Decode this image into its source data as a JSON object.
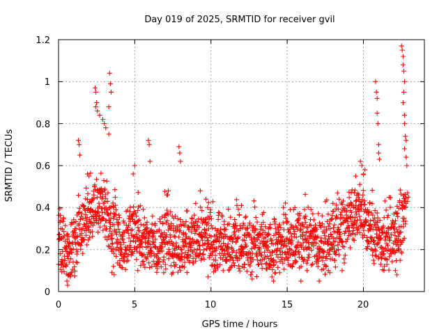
{
  "chart_data": {
    "type": "scatter",
    "title": "Day 019 of 2025, SRMTID for receiver gvil",
    "xlabel": "GPS time / hours",
    "ylabel": "SRMTID / TECUs",
    "xlim": [
      0,
      24
    ],
    "ylim": [
      0,
      1.2
    ],
    "xticks": [
      0,
      5,
      10,
      15,
      20
    ],
    "xtick_labels": [
      "0",
      "5",
      "10",
      "15",
      "20"
    ],
    "yticks": [
      0,
      0.2,
      0.4,
      0.6,
      0.8,
      1.0,
      1.2
    ],
    "ytick_labels": [
      "0",
      "0.2",
      "0.4",
      "0.6",
      "0.8",
      "1",
      "1.2"
    ],
    "grid": true,
    "marker": "+",
    "series": [
      {
        "name": "SRMTID",
        "color": "#ff0000",
        "profile": [
          [
            0.0,
            0.24
          ],
          [
            0.5,
            0.18
          ],
          [
            1.0,
            0.2
          ],
          [
            1.4,
            0.3
          ],
          [
            1.8,
            0.35
          ],
          [
            2.3,
            0.4
          ],
          [
            2.7,
            0.42
          ],
          [
            3.1,
            0.4
          ],
          [
            3.5,
            0.3
          ],
          [
            4.0,
            0.24
          ],
          [
            4.5,
            0.26
          ],
          [
            5.0,
            0.28
          ],
          [
            5.5,
            0.24
          ],
          [
            6.0,
            0.23
          ],
          [
            6.5,
            0.22
          ],
          [
            7.0,
            0.26
          ],
          [
            7.5,
            0.22
          ],
          [
            8.0,
            0.22
          ],
          [
            8.5,
            0.25
          ],
          [
            9.0,
            0.26
          ],
          [
            9.5,
            0.26
          ],
          [
            10.0,
            0.25
          ],
          [
            10.5,
            0.24
          ],
          [
            11.0,
            0.23
          ],
          [
            11.5,
            0.23
          ],
          [
            12.0,
            0.24
          ],
          [
            12.5,
            0.22
          ],
          [
            13.0,
            0.22
          ],
          [
            13.5,
            0.22
          ],
          [
            14.0,
            0.21
          ],
          [
            14.5,
            0.22
          ],
          [
            15.0,
            0.24
          ],
          [
            15.5,
            0.23
          ],
          [
            16.0,
            0.25
          ],
          [
            16.5,
            0.25
          ],
          [
            17.0,
            0.23
          ],
          [
            17.5,
            0.22
          ],
          [
            18.0,
            0.26
          ],
          [
            18.5,
            0.28
          ],
          [
            19.0,
            0.3
          ],
          [
            19.5,
            0.38
          ],
          [
            20.0,
            0.36
          ],
          [
            20.5,
            0.3
          ],
          [
            21.0,
            0.24
          ],
          [
            21.5,
            0.26
          ],
          [
            22.0,
            0.24
          ],
          [
            22.5,
            0.32
          ],
          [
            22.8,
            0.4
          ]
        ],
        "excursions": [
          [
            0.1,
            0.33
          ],
          [
            0.15,
            0.3
          ],
          [
            0.55,
            0.05
          ],
          [
            0.6,
            0.03
          ],
          [
            0.7,
            0.08
          ],
          [
            1.3,
            0.72
          ],
          [
            1.35,
            0.7
          ],
          [
            1.4,
            0.65
          ],
          [
            1.9,
            0.56
          ],
          [
            2.0,
            0.55
          ],
          [
            2.4,
            0.97
          ],
          [
            2.45,
            0.95
          ],
          [
            2.5,
            0.9
          ],
          [
            2.55,
            0.86
          ],
          [
            2.45,
            0.88
          ],
          [
            2.7,
            0.84
          ],
          [
            2.9,
            0.82
          ],
          [
            3.0,
            0.8
          ],
          [
            3.1,
            0.78
          ],
          [
            3.3,
            0.88
          ],
          [
            3.35,
            1.04
          ],
          [
            3.4,
            0.99
          ],
          [
            3.45,
            0.95
          ],
          [
            3.3,
            0.75
          ],
          [
            3.5,
            0.09
          ],
          [
            3.6,
            0.12
          ],
          [
            3.65,
            0.08
          ],
          [
            4.9,
            0.56
          ],
          [
            5.0,
            0.6
          ],
          [
            5.2,
            0.1
          ],
          [
            5.9,
            0.72
          ],
          [
            5.95,
            0.7
          ],
          [
            6.0,
            0.62
          ],
          [
            6.9,
            0.09
          ],
          [
            7.1,
            0.46
          ],
          [
            7.2,
            0.48
          ],
          [
            7.5,
            0.09
          ],
          [
            7.9,
            0.69
          ],
          [
            7.95,
            0.66
          ],
          [
            8.0,
            0.62
          ],
          [
            9.0,
            0.42
          ],
          [
            9.3,
            0.48
          ],
          [
            9.8,
            0.07
          ],
          [
            10.3,
            0.1
          ],
          [
            10.8,
            0.1
          ],
          [
            11.7,
            0.41
          ],
          [
            12.0,
            0.41
          ],
          [
            12.6,
            0.08
          ],
          [
            12.7,
            0.06
          ],
          [
            14.0,
            0.07
          ],
          [
            14.1,
            0.05
          ],
          [
            14.5,
            0.09
          ],
          [
            15.2,
            0.39
          ],
          [
            15.5,
            0.4
          ],
          [
            15.9,
            0.05
          ],
          [
            16.3,
            0.1
          ],
          [
            17.1,
            0.05
          ],
          [
            17.7,
            0.1
          ],
          [
            17.8,
            0.09
          ],
          [
            18.0,
            0.42
          ],
          [
            18.4,
            0.44
          ],
          [
            18.6,
            0.1
          ],
          [
            19.2,
            0.47
          ],
          [
            19.5,
            0.55
          ],
          [
            19.8,
            0.62
          ],
          [
            19.9,
            0.6
          ],
          [
            20.0,
            0.56
          ],
          [
            20.1,
            0.58
          ],
          [
            20.4,
            0.3
          ],
          [
            20.8,
            1.0
          ],
          [
            20.85,
            0.95
          ],
          [
            20.9,
            0.92
          ],
          [
            20.9,
            0.85
          ],
          [
            20.95,
            0.8
          ],
          [
            21.0,
            0.7
          ],
          [
            21.0,
            0.66
          ],
          [
            21.05,
            0.63
          ],
          [
            21.2,
            0.16
          ],
          [
            21.3,
            0.18
          ],
          [
            22.1,
            0.1
          ],
          [
            22.2,
            0.08
          ],
          [
            22.5,
            1.17
          ],
          [
            22.55,
            1.15
          ],
          [
            22.6,
            1.12
          ],
          [
            22.6,
            1.08
          ],
          [
            22.65,
            1.05
          ],
          [
            22.7,
            1.0
          ],
          [
            22.65,
            0.95
          ],
          [
            22.6,
            0.9
          ],
          [
            22.7,
            0.84
          ],
          [
            22.7,
            0.8
          ],
          [
            22.75,
            0.74
          ],
          [
            22.8,
            0.72
          ],
          [
            22.7,
            0.68
          ],
          [
            22.8,
            0.64
          ],
          [
            22.85,
            0.6
          ],
          [
            22.9,
            0.47
          ],
          [
            22.95,
            0.45
          ],
          [
            22.8,
            0.42
          ],
          [
            22.9,
            0.43
          ]
        ]
      }
    ]
  }
}
